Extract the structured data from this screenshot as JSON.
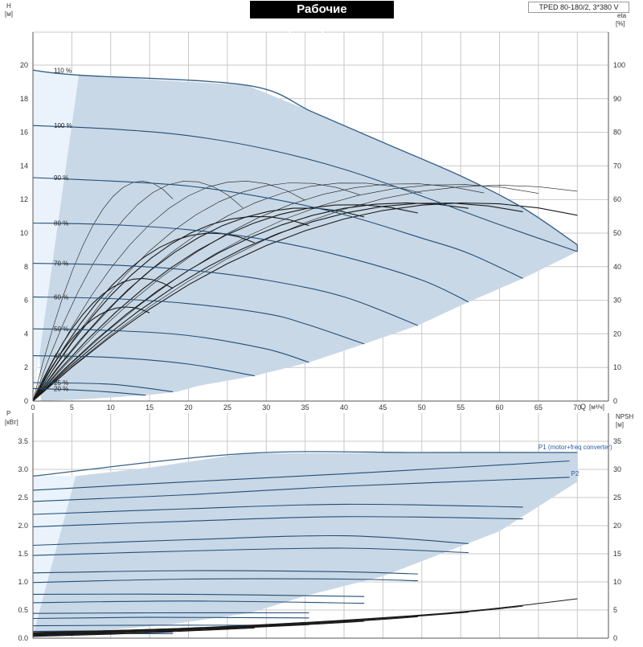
{
  "header": {
    "title": "Рабочие характеристики",
    "model": "TPED 80-180/2, 3*380 V"
  },
  "colors": {
    "envelope_fill": "#c9d8e6",
    "low_speed_fill": "#eaf3fc",
    "envelope_edge": "#3a6289",
    "speed_curve": "#1f4e79",
    "system_curve": "#1a1a1a",
    "grid": "#c8c8c8",
    "axis": "#555555"
  },
  "chart_data": [
    {
      "type": "line",
      "title": "Рабочие характеристики",
      "xlabel": "Q",
      "xunit": "[м³/ч]",
      "ylabel_left": "H",
      "yunit_left": "[м]",
      "ylabel_right": "eta",
      "yunit_right": "[%]",
      "xlim": [
        0,
        74
      ],
      "ylim": [
        0,
        20
      ],
      "y2lim": [
        0,
        100
      ],
      "x_ticks": [
        0,
        5,
        10,
        15,
        20,
        25,
        30,
        35,
        40,
        45,
        50,
        55,
        60,
        65,
        70
      ],
      "y_ticks": [
        0,
        2,
        4,
        6,
        8,
        10,
        12,
        14,
        16,
        18,
        20
      ],
      "y2_ticks": [
        0,
        10,
        20,
        30,
        40,
        50,
        60,
        70,
        80,
        90,
        100
      ],
      "grid": true,
      "envelope": {
        "x": [
          0,
          5.9,
          27.5,
          36,
          45,
          55,
          63,
          70,
          70,
          63,
          56,
          49.5,
          42.6,
          35.5,
          28.5,
          21.2,
          18.5,
          14.5,
          9.5,
          6,
          3.5,
          1
        ],
        "y": [
          19.7,
          19.4,
          18.8,
          17.2,
          15.4,
          13.4,
          11.5,
          9.3,
          8.9,
          7.3,
          5.9,
          4.5,
          3.4,
          2.3,
          1.5,
          0.9,
          0.55,
          0.35,
          0.2,
          0.1,
          0.05,
          0
        ]
      },
      "speed_curves": [
        {
          "name": "110 %",
          "x": [
            0,
            5.9,
            27.5,
            36,
            45,
            55,
            63,
            70
          ],
          "y": [
            19.7,
            19.4,
            18.8,
            17.2,
            15.4,
            13.4,
            11.5,
            9.3
          ]
        },
        {
          "name": "100 %",
          "x": [
            0,
            10,
            20,
            30,
            40,
            50,
            60,
            70
          ],
          "y": [
            16.4,
            16.2,
            15.8,
            15.0,
            13.8,
            12.2,
            10.5,
            8.9
          ]
        },
        {
          "name": "90 %",
          "x": [
            0,
            10,
            20,
            30,
            40,
            50,
            56,
            63
          ],
          "y": [
            13.3,
            13.1,
            12.8,
            12.1,
            11.1,
            9.7,
            8.8,
            7.3
          ]
        },
        {
          "name": "80 %",
          "x": [
            0,
            10,
            20,
            30,
            40,
            50,
            56
          ],
          "y": [
            10.6,
            10.5,
            10.2,
            9.6,
            8.6,
            7.2,
            5.9
          ]
        },
        {
          "name": "70 %",
          "x": [
            0,
            10,
            20,
            30,
            40,
            49.5
          ],
          "y": [
            8.2,
            8.1,
            7.8,
            7.2,
            6.2,
            4.5
          ]
        },
        {
          "name": "60 %",
          "x": [
            0,
            10,
            20,
            30,
            35,
            42.6
          ],
          "y": [
            6.2,
            6.1,
            5.8,
            5.2,
            4.6,
            3.4
          ]
        },
        {
          "name": "50 %",
          "x": [
            0,
            10,
            20,
            30,
            35.5
          ],
          "y": [
            4.3,
            4.2,
            3.9,
            3.1,
            2.3
          ]
        },
        {
          "name": "40 %",
          "x": [
            0,
            10,
            20,
            28.5
          ],
          "y": [
            2.7,
            2.6,
            2.2,
            1.5
          ]
        },
        {
          "name": "25 %",
          "x": [
            0,
            10,
            18
          ],
          "y": [
            1.1,
            1.0,
            0.55
          ]
        },
        {
          "name": "20 %",
          "x": [
            0,
            8,
            14.5
          ],
          "y": [
            0.75,
            0.6,
            0.35
          ]
        }
      ],
      "eta_curves": [
        {
          "x0": 0,
          "xmax": 14,
          "xend": 18,
          "peak": 13.1
        },
        {
          "x0": 0,
          "xmax": 20,
          "xend": 27,
          "peak": 13.1
        },
        {
          "x0": 0,
          "xmax": 27,
          "xend": 35,
          "peak": 13.1
        },
        {
          "x0": 0,
          "xmax": 34,
          "xend": 42,
          "peak": 13.0
        },
        {
          "x0": 0,
          "xmax": 41,
          "xend": 50,
          "peak": 13.0
        },
        {
          "x0": 0,
          "xmax": 48,
          "xend": 58,
          "peak": 12.95
        },
        {
          "x0": 0,
          "xmax": 54,
          "xend": 65,
          "peak": 12.9
        },
        {
          "x0": 0,
          "xmax": 60,
          "xend": 70,
          "peak": 12.85
        },
        {
          "x0": 0,
          "xmax": 12,
          "xend": 15,
          "peak": 5.6
        },
        {
          "x0": 0,
          "xmax": 14,
          "xend": 18,
          "peak": 7.3
        },
        {
          "x0": 0,
          "xmax": 23,
          "xend": 28.5,
          "peak": 10.0
        },
        {
          "x0": 0,
          "xmax": 29,
          "xend": 35.5,
          "peak": 11.0
        },
        {
          "x0": 0,
          "xmax": 35,
          "xend": 42.6,
          "peak": 11.5
        },
        {
          "x0": 0,
          "xmax": 41,
          "xend": 49.5,
          "peak": 11.7
        },
        {
          "x0": 0,
          "xmax": 48,
          "xend": 56,
          "peak": 11.8
        },
        {
          "x0": 0,
          "xmax": 52,
          "xend": 63,
          "peak": 11.8
        },
        {
          "x0": 0,
          "xmax": 56,
          "xend": 70,
          "peak": 11.8
        }
      ]
    },
    {
      "type": "line",
      "xlabel": "",
      "ylabel_left": "P",
      "yunit_left": "[кВт]",
      "ylabel_right": "NPSH",
      "yunit_right": "[м]",
      "xlim": [
        0,
        74
      ],
      "ylim": [
        0,
        3.5
      ],
      "y2lim": [
        0,
        35
      ],
      "y_ticks": [
        0,
        0.5,
        1.0,
        1.5,
        2.0,
        2.5,
        3.0,
        3.5
      ],
      "y2_ticks": [
        0,
        5,
        10,
        15,
        20,
        25,
        30,
        35
      ],
      "grid": true,
      "legend": [
        "P1 (motor+freq converter)",
        "P2"
      ],
      "envelope": {
        "x": [
          0,
          5.5,
          15,
          27,
          50,
          70,
          70,
          60,
          45,
          35,
          28,
          18,
          10,
          5,
          0
        ],
        "y": [
          2.88,
          2.88,
          3.03,
          3.28,
          3.3,
          3.3,
          2.78,
          1.9,
          1.1,
          0.75,
          0.45,
          0.25,
          0.15,
          0.08,
          0.05
        ]
      },
      "power_curves": [
        {
          "name": "P1 (motor+freq converter)",
          "x": [
            0,
            27,
            50,
            70
          ],
          "y": [
            2.88,
            3.28,
            3.3,
            3.3
          ]
        },
        {
          "x": [
            0,
            20,
            40,
            69
          ],
          "y": [
            2.63,
            2.78,
            2.92,
            3.15
          ]
        },
        {
          "name": "P2",
          "x": [
            0,
            20,
            40,
            69
          ],
          "y": [
            2.43,
            2.55,
            2.7,
            2.86
          ]
        },
        {
          "x": [
            0,
            20,
            40,
            63
          ],
          "y": [
            2.2,
            2.3,
            2.38,
            2.33
          ]
        },
        {
          "x": [
            0,
            20,
            40,
            63
          ],
          "y": [
            1.98,
            2.08,
            2.16,
            2.12
          ]
        },
        {
          "x": [
            0,
            20,
            40,
            56
          ],
          "y": [
            1.65,
            1.75,
            1.82,
            1.68
          ]
        },
        {
          "x": [
            0,
            20,
            40,
            56
          ],
          "y": [
            1.47,
            1.55,
            1.6,
            1.52
          ]
        },
        {
          "x": [
            0,
            20,
            40,
            49.5
          ],
          "y": [
            1.16,
            1.2,
            1.18,
            1.14
          ]
        },
        {
          "x": [
            0,
            20,
            40,
            49.5
          ],
          "y": [
            0.99,
            1.05,
            1.05,
            1.02
          ]
        },
        {
          "x": [
            0,
            20,
            42.6
          ],
          "y": [
            0.78,
            0.78,
            0.74
          ]
        },
        {
          "x": [
            0,
            20,
            42.6
          ],
          "y": [
            0.63,
            0.66,
            0.62
          ]
        },
        {
          "x": [
            0,
            15,
            35.5
          ],
          "y": [
            0.44,
            0.45,
            0.45
          ]
        },
        {
          "x": [
            0,
            15,
            35.5
          ],
          "y": [
            0.35,
            0.37,
            0.36
          ]
        },
        {
          "x": [
            0,
            15,
            28.5
          ],
          "y": [
            0.22,
            0.23,
            0.23
          ]
        },
        {
          "x": [
            0,
            10,
            18
          ],
          "y": [
            0.12,
            0.13,
            0.12
          ]
        },
        {
          "x": [
            0,
            10,
            18
          ],
          "y": [
            0.07,
            0.08,
            0.08
          ]
        }
      ],
      "npsh_curves": [
        {
          "x": [
            0,
            20,
            40,
            56,
            70
          ],
          "y": [
            1.0,
            1.8,
            3.2,
            4.8,
            7.0
          ]
        },
        {
          "x": [
            0,
            20,
            40,
            56,
            63
          ],
          "y": [
            0.9,
            1.7,
            3.1,
            4.7,
            5.7
          ]
        },
        {
          "x": [
            0,
            20,
            40,
            56
          ],
          "y": [
            0.8,
            1.6,
            3.0,
            4.6
          ]
        },
        {
          "x": [
            0,
            20,
            40,
            49.5
          ],
          "y": [
            0.7,
            1.5,
            2.9,
            3.8
          ]
        },
        {
          "x": [
            0,
            20,
            35,
            42.6
          ],
          "y": [
            0.6,
            1.5,
            2.4,
            3.0
          ]
        },
        {
          "x": [
            0,
            20,
            35.5
          ],
          "y": [
            0.5,
            1.4,
            2.4
          ]
        },
        {
          "x": [
            0,
            15,
            28.5
          ],
          "y": [
            0.4,
            1.0,
            1.8
          ]
        },
        {
          "x": [
            0,
            10,
            18
          ],
          "y": [
            0.3,
            0.7,
            1.1
          ]
        }
      ]
    }
  ]
}
